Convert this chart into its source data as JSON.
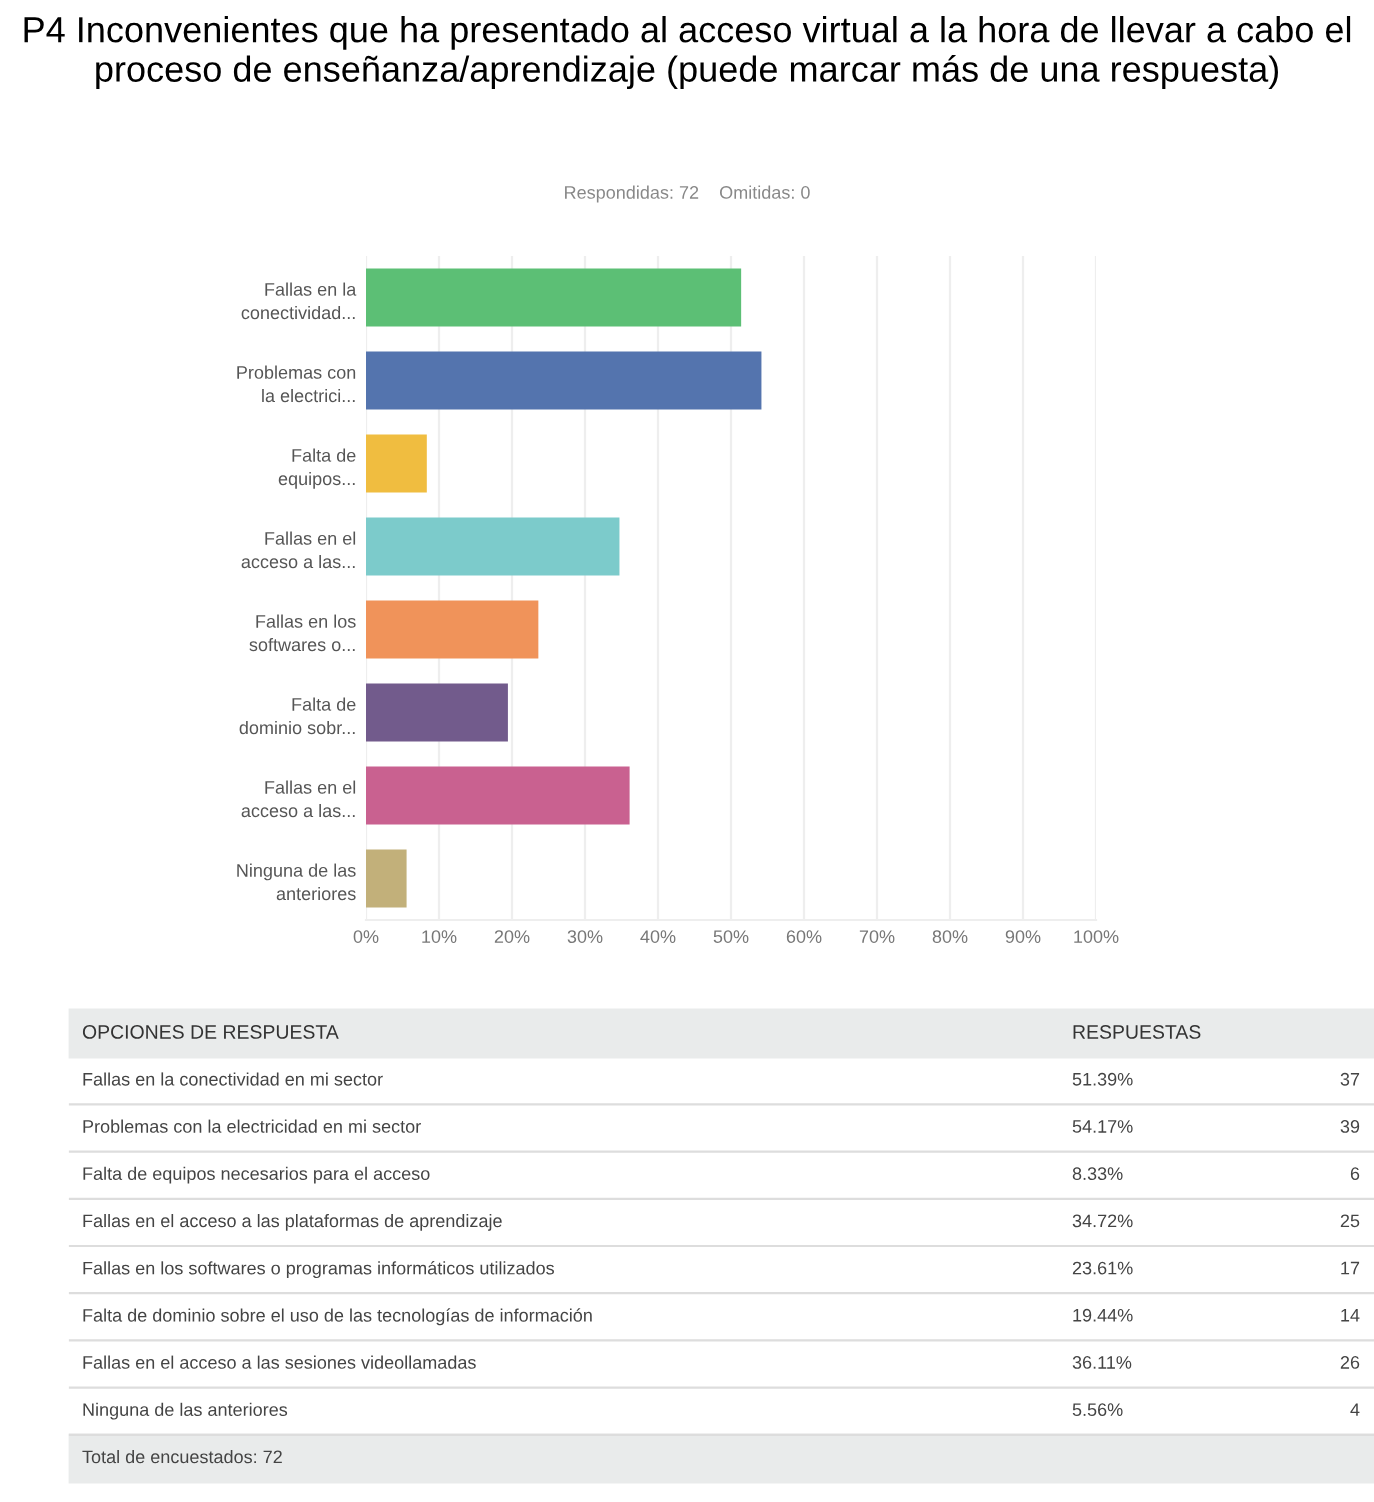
{
  "chart_data": {
    "type": "bar",
    "orientation": "horizontal",
    "title": "P4 Inconvenientes que ha presentado al acceso virtual a la hora de llevar a cabo el proceso de enseñanza/aprendizaje (puede marcar más de una respuesta)",
    "subtitle": "Respondidas: 72    Omitidas: 0",
    "categories": [
      "Fallas en la\nconectividad...",
      "Problemas con\nla electrici...",
      "Falta de\nequipos...",
      "Fallas en el\nacceso a las...",
      "Fallas en los\nsoftwares o...",
      "Falta de\ndominio sobr...",
      "Fallas en el\nacceso a las...",
      "Ninguna de las\nanteriores"
    ],
    "values": [
      51.39,
      54.17,
      8.33,
      34.72,
      23.61,
      19.44,
      36.11,
      5.56
    ],
    "colors": [
      "#5cbf75",
      "#5474ae",
      "#f0bd40",
      "#7ccbcb",
      "#f0935a",
      "#725b8c",
      "#c96190",
      "#c2b07a"
    ],
    "xlim": [
      0,
      100
    ],
    "xticks": [
      {
        "value": 0,
        "label": "0%"
      },
      {
        "value": 10,
        "label": "10%"
      },
      {
        "value": 20,
        "label": "20%"
      },
      {
        "value": 30,
        "label": "30%"
      },
      {
        "value": 40,
        "label": "40%"
      },
      {
        "value": 50,
        "label": "50%"
      },
      {
        "value": 60,
        "label": "60%"
      },
      {
        "value": 70,
        "label": "70%"
      },
      {
        "value": 80,
        "label": "80%"
      },
      {
        "value": 90,
        "label": "90%"
      },
      {
        "value": 100,
        "label": "100%"
      }
    ],
    "grid": "x",
    "legend": false,
    "annotations": [
      "OPCIONES DE RESPUESTA",
      "RESPUESTAS",
      "Fallas en la conectividad en mi sector",
      "Problemas con la electricidad en mi sector",
      "Falta de equipos necesarios para el acceso",
      "Fallas en el acceso a las plataformas de aprendizaje",
      "Fallas en los softwares o programas informáticos utilizados",
      "Falta de dominio sobre el uso de las tecnologías de información",
      "Fallas en el acceso a las sesiones videollamadas",
      "Ninguna de las anteriores",
      "51.39%",
      "54.17%",
      "8.33%",
      "34.72%",
      "23.61%",
      "19.44%",
      "36.11%",
      "5.56%",
      "37",
      "39",
      "6",
      "25",
      "17",
      "14",
      "26",
      "4",
      "Total de encuestados: 72"
    ]
  }
}
